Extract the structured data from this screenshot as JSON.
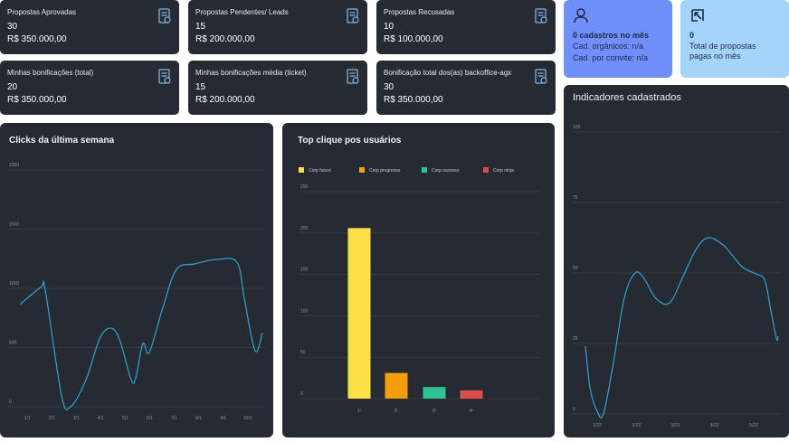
{
  "stat_cards": [
    {
      "label": "Propostas Aprovadas",
      "count": 30,
      "amount": "R$ 350.000,00"
    },
    {
      "label": "Propostas  Pendentes/ Leads",
      "count": 15,
      "amount": "R$ 200.000,00"
    },
    {
      "label": "Propostas Recusadas",
      "count": 10,
      "amount": "R$ 100.000,00"
    },
    {
      "label": "Minhas bonificações (total)",
      "count": 20,
      "amount": "R$ 350.000,00"
    },
    {
      "label": "Minhas bonificações média (ticket)",
      "count": 15,
      "amount": "R$ 200.000,00"
    },
    {
      "label": "Bonificação total dos(as) backoffice-agx",
      "count": 30,
      "amount": "R$ 350.000,00"
    }
  ],
  "summary_cards": [
    {
      "title": "0 cadastros no mês",
      "lines": [
        "Cad. orgânicos: n/a",
        "Cad. por convite: n/a"
      ]
    },
    {
      "title": "0",
      "lines": [
        "Total de propostas pagas no mês"
      ]
    }
  ],
  "chart_data": [
    {
      "type": "line",
      "title": "Clicks da última semana",
      "color": "#2ba3d4",
      "grid": true,
      "x": [
        0.7,
        1.55,
        1.74,
        2.4,
        2.77,
        3.4,
        3.95,
        4.39,
        4.76,
        5.24,
        5.43,
        5.72,
        5.98,
        6.54,
        7.09,
        7.83,
        8.75,
        9.56,
        9.86,
        10.3,
        10.6
      ],
      "values": [
        863,
        1008,
        977,
        92,
        0,
        229,
        573,
        664,
        573,
        229,
        244,
        534,
        458,
        840,
        1160,
        1206,
        1244,
        1221,
        916,
        473,
        626
      ],
      "xlim": [
        0.7,
        10.6
      ],
      "ylim": [
        0,
        2000
      ],
      "xticks": [
        {
          "value": 1,
          "label": "1/1"
        },
        {
          "value": 2,
          "label": "2/1"
        },
        {
          "value": 3,
          "label": "3/1"
        },
        {
          "value": 4,
          "label": "4/1"
        },
        {
          "value": 5,
          "label": "5/1"
        },
        {
          "value": 6,
          "label": "6/1"
        },
        {
          "value": 7,
          "label": "7/1"
        },
        {
          "value": 8,
          "label": "8/1"
        },
        {
          "value": 9,
          "label": "9/1"
        },
        {
          "value": 10,
          "label": "10/1"
        }
      ],
      "yticks": [
        0,
        500,
        1000,
        1500,
        2000
      ]
    },
    {
      "type": "bar",
      "title": "Top clique pos usuários",
      "grid": true,
      "categories": [
        "1º",
        "2º",
        "3º",
        "4º"
      ],
      "values": [
        206,
        31,
        14,
        10
      ],
      "legend": [
        "Corp futuro",
        "Corp progresso",
        "Corp sucesso",
        "Corp ninja"
      ],
      "colors": [
        "#fde046",
        "#f59e0b",
        "#2fc394",
        "#dc4d4d"
      ],
      "ylim": [
        0,
        250
      ],
      "yticks": [
        0,
        50,
        100,
        150,
        200,
        250
      ]
    },
    {
      "type": "line",
      "title": "Indicadores cadastrados",
      "color": "#2ba3d4",
      "grid": true,
      "x": [
        0.7,
        0.82,
        1,
        1.16,
        1.42,
        1.69,
        1.97,
        2.2,
        2.5,
        2.85,
        3.2,
        3.54,
        3.84,
        4.24,
        4.7,
        5.05,
        5.28,
        5.44,
        5.58,
        5.62
      ],
      "values": [
        24,
        9,
        1,
        0,
        18.6,
        41,
        50,
        48,
        41,
        39.4,
        49,
        58.7,
        62.5,
        59.6,
        52.2,
        49.7,
        47.4,
        36.2,
        26.6,
        27.6
      ],
      "xlim": [
        0.7,
        5.62
      ],
      "ylim": [
        0,
        100
      ],
      "xticks": [
        {
          "value": 1,
          "label": "1/22"
        },
        {
          "value": 2,
          "label": "2/22"
        },
        {
          "value": 3,
          "label": "3/22"
        },
        {
          "value": 4,
          "label": "4/22"
        },
        {
          "value": 5,
          "label": "5/22"
        }
      ],
      "yticks": [
        0,
        25,
        50,
        75,
        100
      ]
    }
  ]
}
